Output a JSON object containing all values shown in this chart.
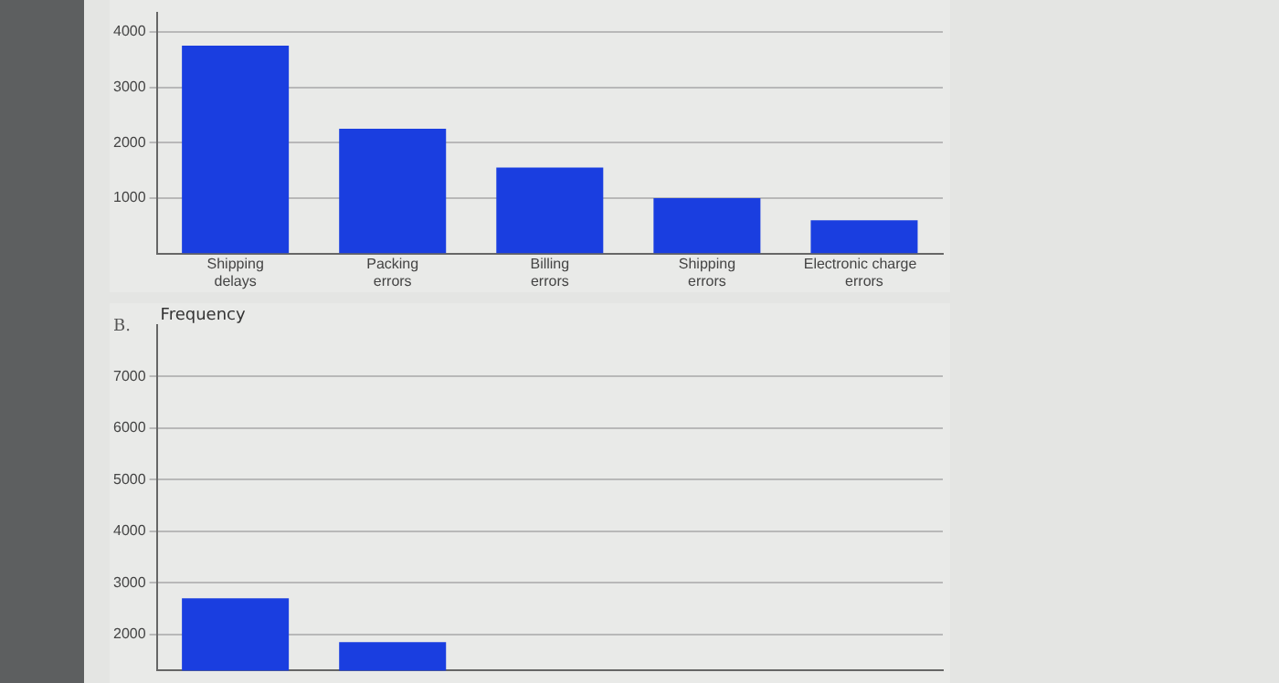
{
  "chart_data": [
    {
      "type": "bar",
      "categories": [
        "Shipping delays",
        "Packing errors",
        "Billing errors",
        "Shipping errors",
        "Electronic charge   errors"
      ],
      "series": [
        {
          "color": "#1a3ee0",
          "values": [
            3750,
            2250,
            1550,
            1000,
            600
          ]
        }
      ],
      "ylim": [
        0,
        4350
      ],
      "yticks": [
        {
          "value": 1000,
          "label": "1000"
        },
        {
          "value": 2000,
          "label": "2000"
        },
        {
          "value": 3000,
          "label": "3000"
        },
        {
          "value": 4000,
          "label": "4000"
        }
      ],
      "grid": "y",
      "legend": false
    },
    {
      "type": "bar",
      "categories": [
        null,
        null,
        null,
        null,
        null
      ],
      "ylabel": "Frequency",
      "annotations": [
        "B."
      ],
      "series": [
        {
          "color": "#1a3ee0",
          "values": [
            2700,
            1850,
            null,
            null,
            null
          ]
        }
      ],
      "ylim": [
        1300,
        8000
      ],
      "yticks": [
        2000,
        3000,
        4000,
        5000,
        6000,
        7000
      ],
      "grid": "y",
      "legend": false,
      "tick_labels": "y"
    }
  ]
}
